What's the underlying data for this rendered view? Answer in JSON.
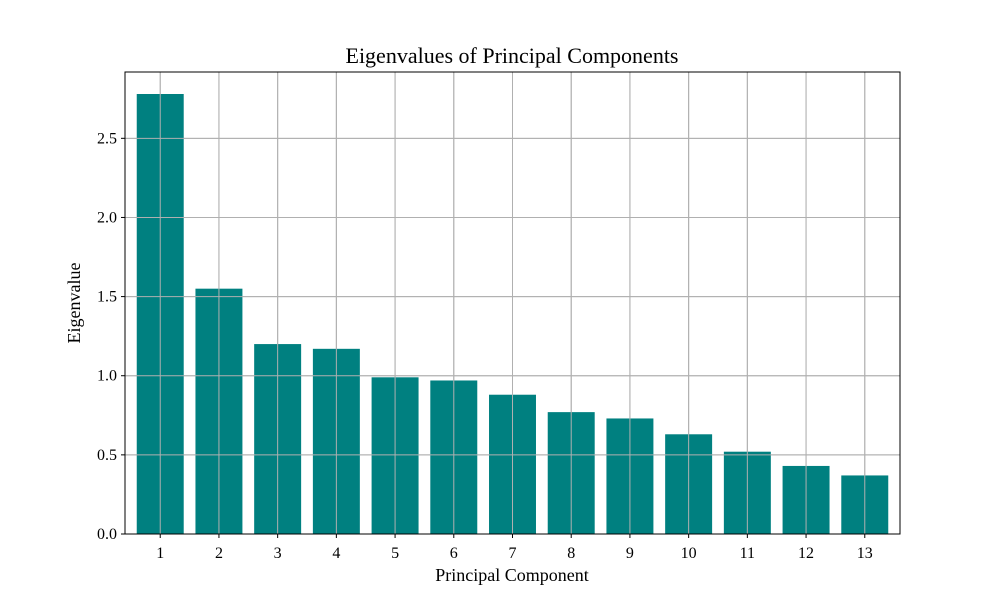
{
  "chart_data": {
    "type": "bar",
    "title": "Eigenvalues of Principal Components",
    "xlabel": "Principal Component",
    "ylabel": "Eigenvalue",
    "categories": [
      "1",
      "2",
      "3",
      "4",
      "5",
      "6",
      "7",
      "8",
      "9",
      "10",
      "11",
      "12",
      "13"
    ],
    "values": [
      2.78,
      1.55,
      1.2,
      1.17,
      0.99,
      0.97,
      0.88,
      0.77,
      0.73,
      0.63,
      0.52,
      0.43,
      0.37
    ],
    "ylim": [
      0,
      2.78
    ],
    "yticks": [
      0.0,
      0.5,
      1.0,
      1.5,
      2.0,
      2.5
    ],
    "ytick_labels": [
      "0.0",
      "0.5",
      "1.0",
      "1.5",
      "2.0",
      "2.5"
    ],
    "grid": true,
    "bar_color": "#008080",
    "grid_color": "#b0b0b0"
  }
}
